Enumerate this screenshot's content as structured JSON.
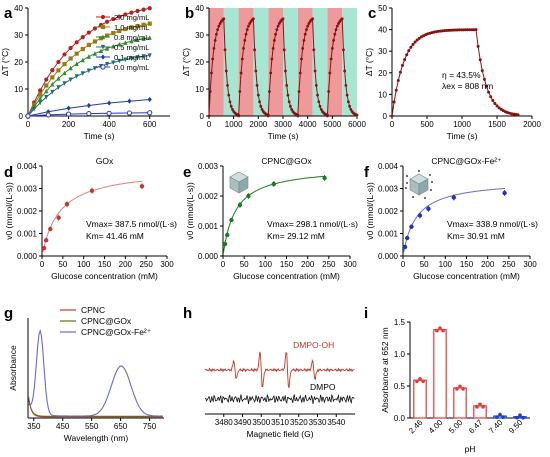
{
  "chart_data": [
    {
      "panel": "a",
      "type": "line",
      "xlabel": "Time (s)",
      "ylabel": "ΔT (°C)",
      "xlim": [
        0,
        700
      ],
      "ylim": [
        0,
        40
      ],
      "xticks": [
        0,
        200,
        400,
        600
      ],
      "yticks": [
        0,
        10,
        20,
        30,
        40
      ],
      "legend": "top-right",
      "series": [
        {
          "name": "2.0 mg/mL",
          "color": "#b22222",
          "marker": "circle",
          "x": [
            0,
            30,
            60,
            90,
            120,
            150,
            180,
            210,
            240,
            270,
            300,
            330,
            360,
            390,
            420,
            450,
            480,
            510,
            540,
            570,
            600
          ],
          "y": [
            0,
            5,
            9.5,
            13.5,
            17,
            20,
            22.8,
            25.2,
            27.3,
            29.2,
            30.9,
            32.4,
            33.7,
            34.9,
            35.9,
            36.8,
            37.6,
            38.3,
            38.9,
            39.4,
            39.9
          ]
        },
        {
          "name": "1.0 mg/mL",
          "color": "#9a7b12",
          "marker": "square",
          "x": [
            0,
            30,
            60,
            90,
            120,
            150,
            180,
            210,
            240,
            270,
            300,
            330,
            360,
            390,
            420,
            450,
            480,
            510,
            540,
            570,
            600
          ],
          "y": [
            0,
            4.2,
            8,
            11.3,
            14.3,
            16.9,
            19.2,
            21.3,
            23.1,
            24.8,
            26.3,
            27.6,
            28.8,
            29.8,
            30.7,
            31.5,
            32.2,
            32.8,
            33.3,
            33.8,
            34.2
          ]
        },
        {
          "name": "0.8 mg/mL",
          "color": "#2e8b2e",
          "marker": "triangle",
          "x": [
            0,
            30,
            60,
            90,
            120,
            150,
            180,
            210,
            240,
            270,
            300,
            330,
            360,
            390,
            420,
            450,
            480,
            510,
            540,
            570,
            600
          ],
          "y": [
            0,
            3.4,
            6.5,
            9.2,
            11.7,
            13.9,
            15.9,
            17.7,
            19.3,
            20.7,
            22,
            23.1,
            24.1,
            25,
            25.8,
            26.5,
            27.1,
            27.7,
            28.2,
            28.6,
            29
          ]
        },
        {
          "name": "0.5 mg/mL",
          "color": "#1f6f78",
          "marker": "triangle-down",
          "x": [
            0,
            30,
            60,
            90,
            120,
            150,
            180,
            210,
            240,
            270,
            300,
            330,
            360,
            390,
            420,
            450,
            480,
            510,
            540,
            570,
            600
          ],
          "y": [
            0,
            2.6,
            4.9,
            7,
            8.9,
            10.6,
            12.1,
            13.5,
            14.7,
            15.8,
            16.8,
            17.7,
            18.5,
            19.2,
            19.8,
            20.4,
            20.9,
            21.3,
            21.7,
            22.1,
            22.4
          ]
        },
        {
          "name": "0.1 mg/mL",
          "color": "#1f3f9a",
          "marker": "diamond",
          "x": [
            0,
            100,
            200,
            300,
            400,
            500,
            600
          ],
          "y": [
            0,
            1.6,
            2.9,
            3.9,
            4.8,
            5.5,
            6.1
          ]
        },
        {
          "name": "0.0 mg/mL",
          "color": "#2b35c4",
          "marker": "circle-open",
          "x": [
            0,
            100,
            200,
            300,
            400,
            500,
            600
          ],
          "y": [
            0,
            0.4,
            0.7,
            0.9,
            1.0,
            1.1,
            1.2
          ]
        }
      ]
    },
    {
      "panel": "b",
      "type": "line",
      "xlabel": "Time (s)",
      "ylabel": "ΔT (°C)",
      "xlim": [
        0,
        6000
      ],
      "ylim": [
        0,
        40
      ],
      "xticks": [
        0,
        1000,
        2000,
        3000,
        4000,
        5000,
        6000
      ],
      "yticks": [
        0,
        10,
        20,
        30,
        40
      ],
      "laser_on": [
        [
          0,
          600
        ],
        [
          1200,
          1800
        ],
        [
          2400,
          3000
        ],
        [
          3600,
          4200
        ],
        [
          4800,
          5400
        ]
      ],
      "laser_off": [
        [
          600,
          1200
        ],
        [
          1800,
          2400
        ],
        [
          3000,
          3600
        ],
        [
          4200,
          4800
        ],
        [
          5400,
          6000
        ]
      ],
      "on_color": "#ef9a9a",
      "off_color": "#a8e6d4",
      "series": [
        {
          "name": "",
          "color": "#8b1010",
          "cycles": 5,
          "cycle_length": 1200,
          "heat_time": 600,
          "peak": 36
        }
      ]
    },
    {
      "panel": "c",
      "type": "line",
      "xlabel": "Time (s)",
      "ylabel": "ΔT (°C)",
      "xlim": [
        0,
        2000
      ],
      "ylim": [
        0,
        50
      ],
      "xticks": [
        0,
        500,
        1000,
        1500,
        2000
      ],
      "yticks": [
        0,
        10,
        20,
        30,
        40,
        50
      ],
      "annotation": [
        "η = 43.5%",
        "λex = 808 nm"
      ],
      "series": [
        {
          "name": "",
          "color": "#8b1010",
          "heat_time": 1200,
          "end_time": 1800,
          "plateau": 40
        }
      ]
    },
    {
      "panel": "d",
      "type": "scatter",
      "title": "GOx",
      "xlabel": "Glucose concentration (mM)",
      "ylabel": "v0 (mmol/(L·s))",
      "xlim": [
        0,
        300
      ],
      "ylim": [
        0,
        0.004
      ],
      "xticks": [
        0,
        50,
        100,
        150,
        200,
        250,
        300
      ],
      "yticks": [
        0,
        0.001,
        0.002,
        0.003,
        0.004
      ],
      "ytick_labels": [
        "0.000",
        "0.001",
        "0.002",
        "0.003",
        "0.004"
      ],
      "point_color": "#c0392b",
      "fit_color": "#e08080",
      "x": [
        5,
        10,
        20,
        40,
        60,
        120,
        240
      ],
      "y": [
        0.00035,
        0.0007,
        0.0012,
        0.0017,
        0.0023,
        0.0029,
        0.0031
      ],
      "vmax": 0.0039,
      "km": 41.46,
      "annotation": [
        "Vmax= 387.5 nmol/(L·s)",
        "Km= 41.46 mM"
      ]
    },
    {
      "panel": "e",
      "type": "scatter",
      "title": "CPNC@GOx",
      "xlabel": "Glucose concentration (mM)",
      "ylabel": "v0 (mmol/(L·s))",
      "xlim": [
        0,
        300
      ],
      "ylim": [
        0,
        0.003
      ],
      "xticks": [
        0,
        50,
        100,
        150,
        200,
        250,
        300
      ],
      "yticks": [
        0,
        0.001,
        0.002,
        0.003
      ],
      "ytick_labels": [
        "0.000",
        "0.001",
        "0.002",
        "0.003"
      ],
      "point_color": "#1e7a1e",
      "fit_color": "#1e7a1e",
      "x": [
        5,
        10,
        20,
        40,
        60,
        120,
        240
      ],
      "y": [
        0.0004,
        0.0007,
        0.0012,
        0.0017,
        0.002,
        0.0024,
        0.0026
      ],
      "vmax": 0.00298,
      "km": 29.12,
      "annotation": [
        "Vmax= 298.1 nmol/(L·s)",
        "Km= 29.12 mM"
      ]
    },
    {
      "panel": "f",
      "type": "scatter",
      "title": "CPNC@GOx-Fe²⁺",
      "xlabel": "Glucose concentration (mM)",
      "ylabel": "v0 (mmol/(L·s))",
      "xlim": [
        0,
        300
      ],
      "ylim": [
        0,
        0.004
      ],
      "xticks": [
        0,
        50,
        100,
        150,
        200,
        250,
        300
      ],
      "yticks": [
        0,
        0.001,
        0.002,
        0.003,
        0.004
      ],
      "ytick_labels": [
        "0.000",
        "0.001",
        "0.002",
        "0.003",
        "0.004"
      ],
      "point_color": "#2233bb",
      "fit_color": "#6a6ad0",
      "x": [
        5,
        10,
        20,
        40,
        60,
        120,
        240
      ],
      "y": [
        0.0004,
        0.0008,
        0.0013,
        0.0018,
        0.0021,
        0.0026,
        0.0028
      ],
      "vmax": 0.00339,
      "km": 30.91,
      "annotation": [
        "Vmax= 338.9 nmol/(L·s)",
        "Km= 30.91 mM"
      ]
    },
    {
      "panel": "g",
      "type": "line",
      "xlabel": "Wavelength (nm)",
      "ylabel": "Absorbance",
      "xlim": [
        330,
        800
      ],
      "xticks": [
        350,
        450,
        550,
        650,
        750
      ],
      "legend": "top-right",
      "series": [
        {
          "name": "CPNC",
          "color": "#c0392b"
        },
        {
          "name": "CPNC@GOx",
          "color": "#6b6b20"
        },
        {
          "name": "CPNC@GOx-Fe²⁺",
          "color": "#6a6ad0"
        }
      ]
    },
    {
      "panel": "h",
      "type": "line",
      "xlabel": "Magnetic field (G)",
      "xlim": [
        3470,
        3550
      ],
      "xticks": [
        3480,
        3490,
        3500,
        3510,
        3520,
        3530,
        3540
      ],
      "series": [
        {
          "name": "DMPO-OH",
          "color": "#c0392b"
        },
        {
          "name": "DMPO",
          "color": "#111111"
        }
      ]
    },
    {
      "panel": "i",
      "type": "bar",
      "xlabel": "pH",
      "ylabel": "Absorbance at 652 nm",
      "ylim": [
        0,
        1.5
      ],
      "yticks": [
        0,
        0.5,
        1.0,
        1.5
      ],
      "ytick_labels": [
        "0.0",
        "0.5",
        "1.0",
        "1.5"
      ],
      "categories": [
        "2.46",
        "4.00",
        "5.00",
        "6.47",
        "7.40",
        "9.50"
      ],
      "values": [
        0.59,
        1.38,
        0.47,
        0.19,
        0.03,
        0.02
      ],
      "colors": [
        "#e53935",
        "#e53935",
        "#e53935",
        "#e53935",
        "#1f3fbf",
        "#1f3fbf"
      ]
    }
  ]
}
